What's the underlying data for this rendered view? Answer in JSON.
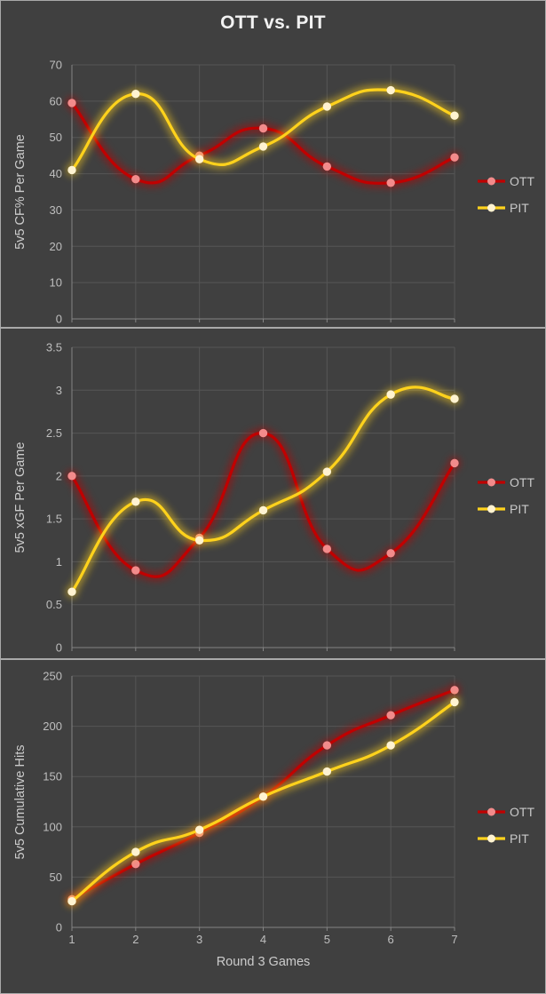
{
  "title": "OTT vs. PIT",
  "colors": {
    "background": "#404040",
    "panel_border": "#A9A9A9",
    "gridline": "#565656",
    "axis_line": "#858585",
    "tick_text": "#BEBEBE",
    "axis_title_text": "#CCCCCC",
    "chart_title_text": "#F2F2F2",
    "legend_text": "#C9C9C9",
    "series": {
      "OTT": {
        "line": "#C00000",
        "marker": "#F28B8B"
      },
      "PIT": {
        "line": "#FFD21C",
        "marker": "#FFF3D1"
      }
    }
  },
  "x_axis": {
    "title": "Round 3 Games",
    "ticks": [
      "1",
      "2",
      "3",
      "4",
      "5",
      "6",
      "7"
    ]
  },
  "legend": {
    "entries": [
      "OTT",
      "PIT"
    ]
  },
  "chart_data": [
    {
      "type": "line",
      "title": "OTT vs. PIT",
      "ylabel": "5v5 CF% Per Game",
      "xlabel": "",
      "x": [
        1,
        2,
        3,
        4,
        5,
        6,
        7
      ],
      "ylim": [
        0,
        70
      ],
      "ytick_step": 10,
      "grid": true,
      "smooth": true,
      "legend_position": "right",
      "series": [
        {
          "name": "OTT",
          "values": [
            59.5,
            38.5,
            45,
            52.5,
            42,
            37.5,
            44.5
          ]
        },
        {
          "name": "PIT",
          "values": [
            41,
            62,
            44,
            47.5,
            58.5,
            63,
            56
          ]
        }
      ]
    },
    {
      "type": "line",
      "title": "",
      "ylabel": "5v5 xGF Per Game",
      "xlabel": "",
      "x": [
        1,
        2,
        3,
        4,
        5,
        6,
        7
      ],
      "ylim": [
        0,
        3.5
      ],
      "ytick_step": 0.5,
      "grid": true,
      "smooth": true,
      "legend_position": "right",
      "series": [
        {
          "name": "OTT",
          "values": [
            2.0,
            0.9,
            1.28,
            2.5,
            1.15,
            1.1,
            2.15
          ]
        },
        {
          "name": "PIT",
          "values": [
            0.65,
            1.7,
            1.25,
            1.6,
            2.05,
            2.95,
            2.9
          ]
        }
      ]
    },
    {
      "type": "line",
      "title": "",
      "ylabel": "5v5 Cumulative Hits",
      "xlabel": "Round 3 Games",
      "x": [
        1,
        2,
        3,
        4,
        5,
        6,
        7
      ],
      "ylim": [
        0,
        250
      ],
      "ytick_step": 50,
      "grid": true,
      "smooth": true,
      "legend_position": "right",
      "series": [
        {
          "name": "OTT",
          "values": [
            28,
            63,
            94,
            130,
            181,
            211,
            236
          ]
        },
        {
          "name": "PIT",
          "values": [
            26,
            75,
            97,
            130,
            155,
            181,
            224
          ]
        }
      ]
    }
  ]
}
